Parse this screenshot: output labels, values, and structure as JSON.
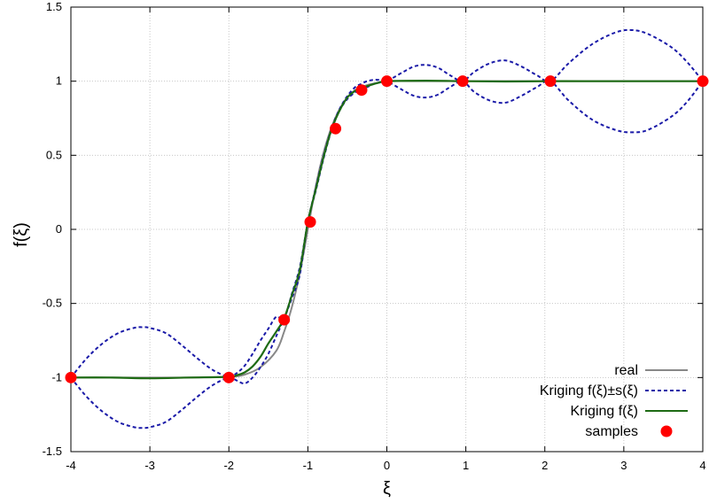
{
  "chart_data": {
    "type": "line",
    "title": "",
    "xlabel": "ξ",
    "ylabel": "f(ξ)",
    "xlim": [
      -4,
      4
    ],
    "ylim": [
      -1.5,
      1.5
    ],
    "xticks": [
      "-4",
      "-3",
      "-2",
      "-1",
      "0",
      "1",
      "2",
      "3",
      "4"
    ],
    "yticks": [
      "-1.5",
      "-1",
      "-0.5",
      "0",
      "0.5",
      "1",
      "1.5"
    ],
    "grid": true,
    "legend_position": "bottom-right",
    "series": [
      {
        "name": "real",
        "style": "solid",
        "color": "#888888",
        "x": [
          -4,
          -3.5,
          -3,
          -2.5,
          -2,
          -1.8,
          -1.6,
          -1.4,
          -1.3,
          -1.2,
          -1.1,
          -1.0,
          -0.9,
          -0.8,
          -0.7,
          -0.6,
          -0.5,
          -0.4,
          -0.3,
          -0.2,
          -0.1,
          0,
          0.5,
          1,
          1.5,
          2,
          2.5,
          3,
          3.5,
          4
        ],
        "values": [
          -1,
          -1,
          -1,
          -1,
          -0.995,
          -0.98,
          -0.93,
          -0.82,
          -0.69,
          -0.52,
          -0.29,
          0.0,
          0.29,
          0.52,
          0.69,
          0.81,
          0.89,
          0.94,
          0.965,
          0.98,
          0.99,
          1.0,
          1,
          1,
          1,
          1,
          1,
          1,
          1,
          1
        ]
      },
      {
        "name": "Kriging f(ξ)±s(ξ)",
        "style": "dashed",
        "color": "#1a1aa8",
        "branches": [
          {
            "x": [
              -4,
              -3.8,
              -3.6,
              -3.4,
              -3.2,
              -3.1,
              -3.0,
              -2.8,
              -2.6,
              -2.4,
              -2.2,
              -2.0,
              -1.9,
              -1.8,
              -1.7,
              -1.6,
              -1.5,
              -1.4,
              -1.3,
              -1.2,
              -1.1,
              -1.0,
              -0.9,
              -0.8,
              -0.7,
              -0.6,
              -0.5,
              -0.4,
              -0.33,
              -0.25,
              -0.15,
              -0.05,
              0,
              0.2,
              0.35,
              0.5,
              0.65,
              0.8,
              0.96,
              1.1,
              1.3,
              1.5,
              1.7,
              1.9,
              2.07,
              2.3,
              2.6,
              2.9,
              3.1,
              3.3,
              3.6,
              3.8,
              4
            ],
            "values": [
              -1,
              -0.87,
              -0.77,
              -0.7,
              -0.665,
              -0.66,
              -0.665,
              -0.7,
              -0.78,
              -0.87,
              -0.95,
              -0.995,
              -0.97,
              -0.92,
              -0.84,
              -0.75,
              -0.67,
              -0.59,
              -0.6,
              -0.43,
              -0.25,
              0.05,
              0.28,
              0.5,
              0.68,
              0.81,
              0.9,
              0.96,
              0.98,
              1.0,
              1.01,
              1.005,
              1.0,
              1.06,
              1.1,
              1.11,
              1.09,
              1.04,
              1.0,
              1.06,
              1.12,
              1.14,
              1.1,
              1.04,
              1.0,
              1.12,
              1.25,
              1.33,
              1.345,
              1.32,
              1.23,
              1.13,
              1.0
            ]
          },
          {
            "x": [
              -4,
              -3.8,
              -3.6,
              -3.4,
              -3.2,
              -3.1,
              -3.0,
              -2.8,
              -2.6,
              -2.4,
              -2.2,
              -2.0,
              -1.9,
              -1.8,
              -1.7,
              -1.6,
              -1.5,
              -1.4,
              -1.3,
              -1.2,
              -1.1,
              -1.0,
              -0.9,
              -0.8,
              -0.7,
              -0.6,
              -0.5,
              -0.4,
              -0.33,
              -0.25,
              -0.15,
              -0.05,
              0,
              0.2,
              0.35,
              0.5,
              0.65,
              0.8,
              0.96,
              1.1,
              1.3,
              1.5,
              1.7,
              1.9,
              2.07,
              2.3,
              2.6,
              2.9,
              3.1,
              3.3,
              3.6,
              3.8,
              4
            ],
            "values": [
              -1,
              -1.13,
              -1.23,
              -1.3,
              -1.335,
              -1.34,
              -1.335,
              -1.3,
              -1.22,
              -1.13,
              -1.05,
              -1.0,
              -1.02,
              -1.04,
              -1.0,
              -0.93,
              -0.84,
              -0.72,
              -0.6,
              -0.46,
              -0.3,
              0.05,
              0.26,
              0.48,
              0.67,
              0.8,
              0.88,
              0.925,
              0.945,
              0.96,
              0.985,
              0.995,
              1.0,
              0.94,
              0.9,
              0.89,
              0.91,
              0.96,
              1.0,
              0.93,
              0.87,
              0.855,
              0.9,
              0.96,
              1.0,
              0.87,
              0.74,
              0.67,
              0.655,
              0.67,
              0.76,
              0.86,
              1.0
            ]
          }
        ]
      },
      {
        "name": "Kriging f(ξ)",
        "style": "solid",
        "color": "#1e6b14",
        "x": [
          -4,
          -3.5,
          -3,
          -2.5,
          -2.0,
          -1.9,
          -1.8,
          -1.7,
          -1.6,
          -1.5,
          -1.4,
          -1.3,
          -1.2,
          -1.1,
          -1.0,
          -0.9,
          -0.8,
          -0.7,
          -0.6,
          -0.5,
          -0.4,
          -0.33,
          -0.2,
          -0.1,
          0,
          0.5,
          1,
          1.5,
          2,
          2.5,
          3,
          3.5,
          4
        ],
        "values": [
          -1,
          -1.0,
          -1.005,
          -1.0,
          -0.995,
          -0.985,
          -0.965,
          -0.925,
          -0.86,
          -0.77,
          -0.69,
          -0.6,
          -0.44,
          -0.27,
          0.05,
          0.27,
          0.49,
          0.675,
          0.8,
          0.89,
          0.935,
          0.95,
          0.975,
          0.99,
          1.0,
          1.003,
          1.0,
          0.998,
          1.0,
          1.0,
          1.0,
          1.0,
          1.0
        ]
      },
      {
        "name": "samples",
        "style": "points",
        "color": "#ff0000",
        "x": [
          -4.0,
          -2.0,
          -1.3,
          -0.97,
          -0.65,
          -0.32,
          0.0,
          0.96,
          2.07,
          4.0
        ],
        "values": [
          -1.0,
          -1.0,
          -0.61,
          0.05,
          0.68,
          0.94,
          1.0,
          1.0,
          1.0,
          1.0
        ]
      }
    ]
  }
}
